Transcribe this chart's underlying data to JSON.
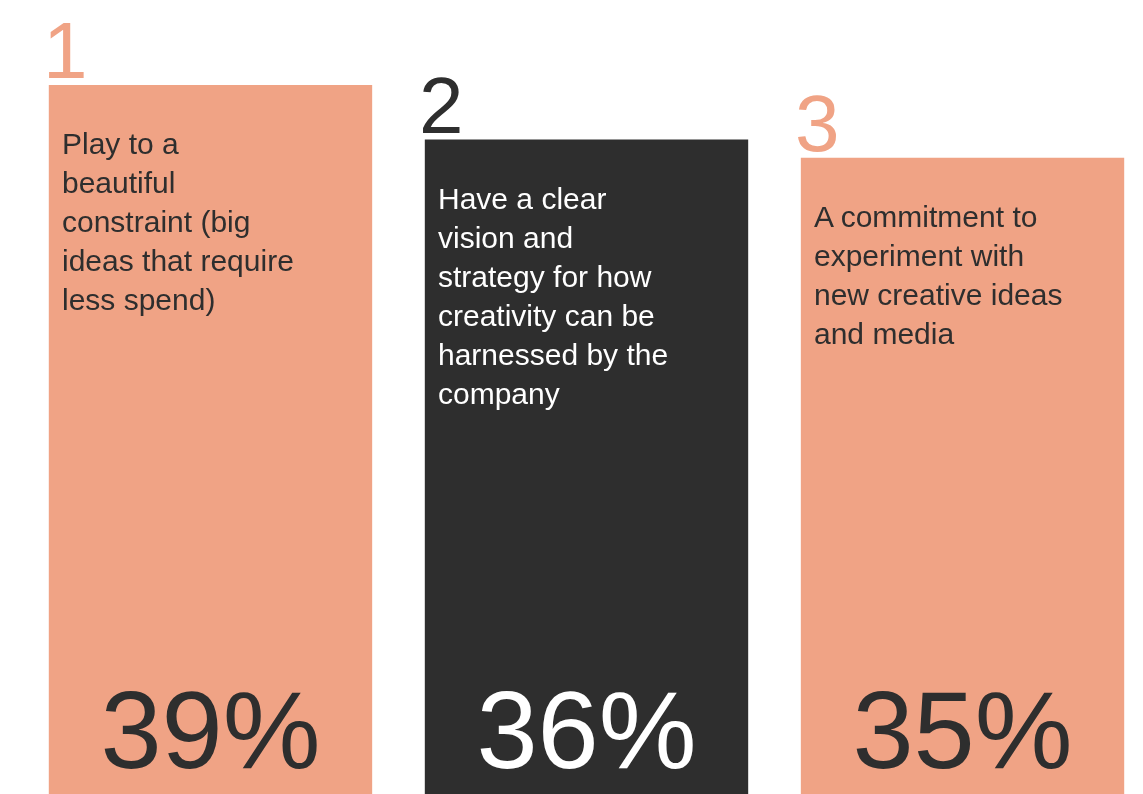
{
  "chart_data": {
    "type": "bar",
    "categories": [
      "Play to a beautiful constraint (big ideas that require less spend)",
      "Have a clear vision and strategy for how creativity can be harnessed by the company",
      "A commitment to experiment with new creative ideas and media"
    ],
    "values": [
      39,
      36,
      35
    ],
    "colors": [
      "#f0a385",
      "#2e2e2e",
      "#f0a385"
    ],
    "value_labels": [
      "39%",
      "36%",
      "35%"
    ],
    "annotations": [
      {
        "text": "1",
        "x": "Play to a beautiful constraint (big ideas that require less spend)",
        "y": 39
      },
      {
        "text": "2",
        "x": "Have a clear vision and strategy for how creativity can be harnessed by the company",
        "y": 36
      },
      {
        "text": "3",
        "x": "A commitment to experiment with new creative ideas and media",
        "y": 35
      }
    ],
    "legend": false
  }
}
